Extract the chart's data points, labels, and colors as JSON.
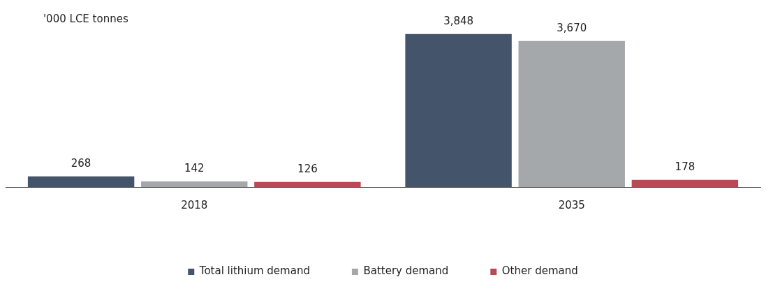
{
  "chart_data": {
    "type": "bar",
    "ylabel": "'000 LCE tonnes",
    "categories": [
      "2018",
      "2035"
    ],
    "series": [
      {
        "name": "Total lithium demand",
        "color": "#44546a",
        "values": [
          268,
          3848
        ],
        "value_labels": [
          "268",
          "3,848"
        ]
      },
      {
        "name": "Battery demand",
        "color": "#a5a8ab",
        "values": [
          142,
          3670
        ],
        "value_labels": [
          "142",
          "3,670"
        ]
      },
      {
        "name": "Other demand",
        "color": "#b94a55",
        "values": [
          126,
          178
        ],
        "value_labels": [
          "126",
          "178"
        ]
      }
    ],
    "legend": "bottom",
    "grid": false
  }
}
